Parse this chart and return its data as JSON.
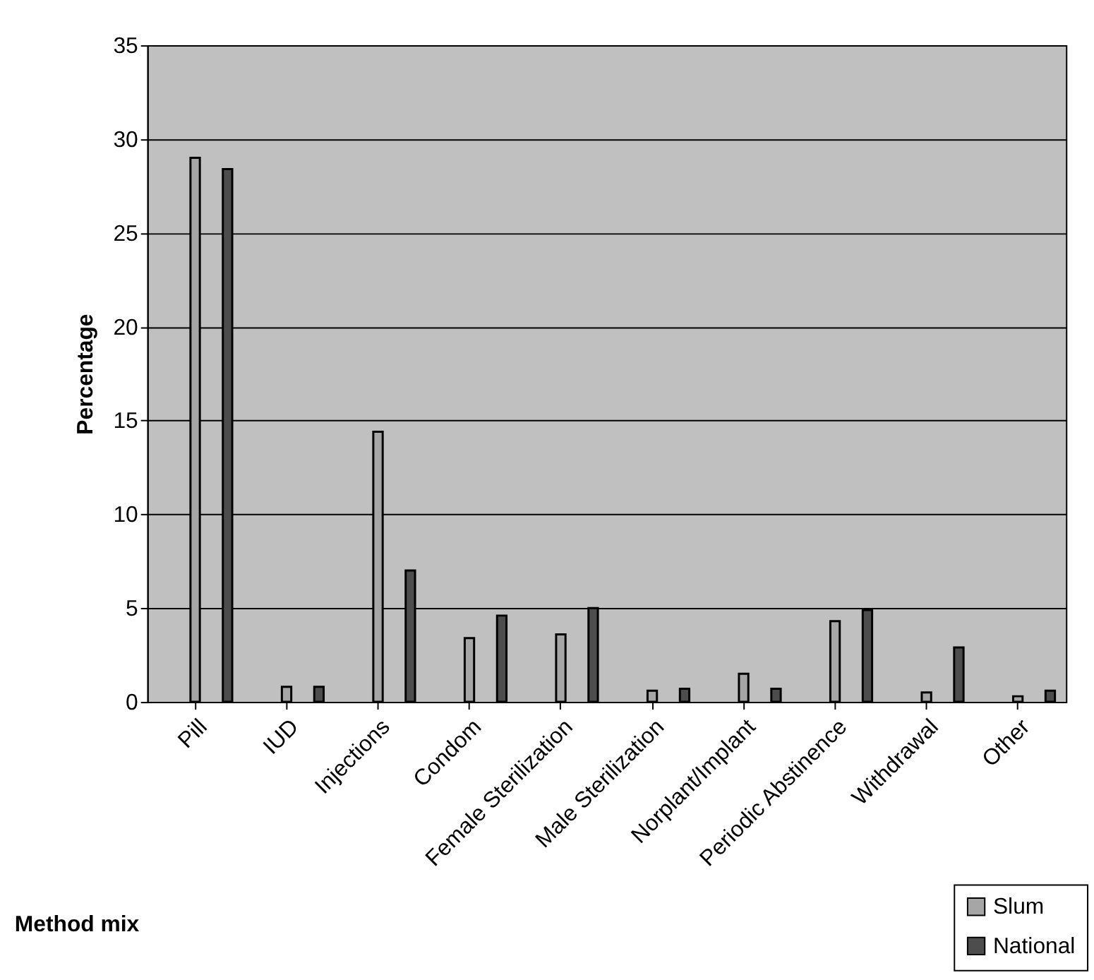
{
  "chart_data": {
    "type": "bar",
    "xlabel": "Method mix",
    "ylabel": "Percentage",
    "categories": [
      "Pill",
      "IUD",
      "Injections",
      "Condom",
      "Female Sterilization",
      "Male Sterilization",
      "Norplant/Implant",
      "Periodic Abstinence",
      "Withdrawal",
      "Other"
    ],
    "series": [
      {
        "name": "Slum",
        "color": "#a6a6a6",
        "values": [
          29.0,
          0.8,
          14.4,
          3.4,
          3.6,
          0.6,
          1.5,
          4.3,
          0.5,
          0.3
        ]
      },
      {
        "name": "National",
        "color": "#4d4d4d",
        "values": [
          28.4,
          0.8,
          7.0,
          4.6,
          5.0,
          0.7,
          0.7,
          4.9,
          2.9,
          0.6
        ]
      }
    ],
    "ylim": [
      0,
      35
    ],
    "yticks": [
      0,
      5,
      10,
      15,
      20,
      25,
      30,
      35
    ],
    "grid": "y",
    "legend": "bottom right"
  }
}
